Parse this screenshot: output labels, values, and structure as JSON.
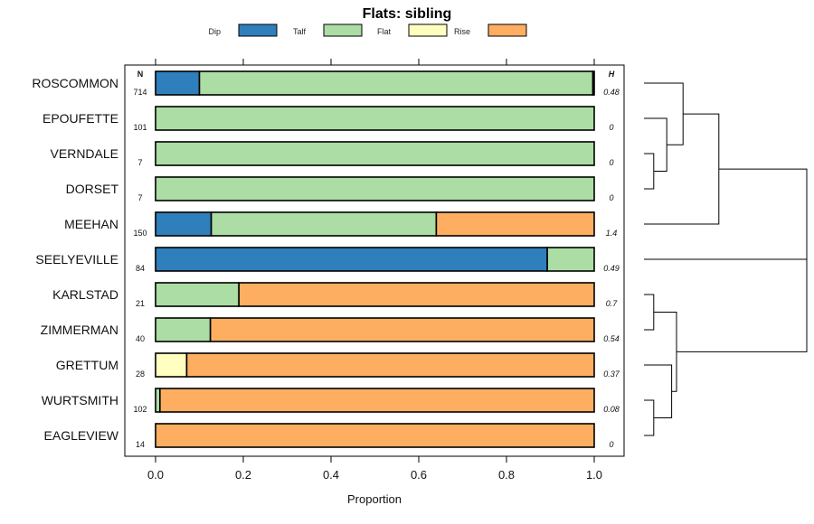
{
  "chart_data": {
    "type": "stacked-bar-horizontal",
    "title": "Flats: sibling",
    "xlabel": "Proportion",
    "xlim": [
      0,
      1
    ],
    "xticks": [
      "0.0",
      "0.2",
      "0.4",
      "0.6",
      "0.8",
      "1.0"
    ],
    "n_header": "N",
    "h_header": "H",
    "legend": [
      {
        "name": "Dip",
        "color": "#2e7fbc"
      },
      {
        "name": "Talf",
        "color": "#abdda4"
      },
      {
        "name": "Flat",
        "color": "#ffffbf"
      },
      {
        "name": "Rise",
        "color": "#fdae61"
      }
    ],
    "rows": [
      {
        "site": "ROSCOMMON",
        "n": "714",
        "h": "0.48",
        "values": [
          0.1,
          0.897,
          0.0,
          0.003
        ]
      },
      {
        "site": "EPOUFETTE",
        "n": "101",
        "h": "0",
        "values": [
          0,
          1,
          0,
          0
        ]
      },
      {
        "site": "VERNDALE",
        "n": "7",
        "h": "0",
        "values": [
          0,
          1,
          0,
          0
        ]
      },
      {
        "site": "DORSET",
        "n": "7",
        "h": "0",
        "values": [
          0,
          1,
          0,
          0
        ]
      },
      {
        "site": "MEEHAN",
        "n": "150",
        "h": "1.4",
        "values": [
          0.127,
          0.513,
          0.0,
          0.36
        ]
      },
      {
        "site": "SEELYEVILLE",
        "n": "84",
        "h": "0.49",
        "values": [
          0.893,
          0.107,
          0,
          0
        ]
      },
      {
        "site": "KARLSTAD",
        "n": "21",
        "h": "0.7",
        "values": [
          0,
          0.19,
          0,
          0.81
        ]
      },
      {
        "site": "ZIMMERMAN",
        "n": "40",
        "h": "0.54",
        "values": [
          0,
          0.125,
          0,
          0.875
        ]
      },
      {
        "site": "GRETTUM",
        "n": "28",
        "h": "0.37",
        "values": [
          0,
          0,
          0.071,
          0.929
        ]
      },
      {
        "site": "WURTSMITH",
        "n": "102",
        "h": "0.08",
        "values": [
          0,
          0.01,
          0,
          0.99
        ]
      },
      {
        "site": "EAGLEVIEW",
        "n": "14",
        "h": "0",
        "values": [
          0,
          0,
          0,
          1
        ]
      }
    ],
    "dendrogram": {
      "merge_order_note": "hierarchical clustering of rows (top to bottom)",
      "merges": [
        {
          "a": "VERNDALE",
          "b": "DORSET",
          "height": 0.06
        },
        {
          "a": "EPOUFETTE",
          "b": "VERNDALE+DORSET",
          "height": 0.14
        },
        {
          "a": "ROSCOMMON",
          "b": "EPOUFETTE+VERNDALE+DORSET",
          "height": 0.24
        },
        {
          "a": "WURTSMITH",
          "b": "EAGLEVIEW",
          "height": 0.06
        },
        {
          "a": "KARLSTAD",
          "b": "ZIMMERMAN",
          "height": 0.06
        },
        {
          "a": "GRETTUM",
          "b": "WURTSMITH+EAGLEVIEW",
          "height": 0.17
        },
        {
          "a": "KARLSTAD+ZIMMERMAN",
          "b": "GRETTUM+WURTSMITH+EAGLEVIEW",
          "height": 0.2
        },
        {
          "a": "ROSCOMMON+EPOUFETTE+VERNDALE+DORSET",
          "b": "MEEHAN",
          "height": 0.46
        },
        {
          "a": "upper",
          "b": "SEELYEVILLE",
          "height": 0.99
        },
        {
          "a": "upper+SEELYEVILLE",
          "b": "lower",
          "height": 1.0
        }
      ]
    }
  }
}
